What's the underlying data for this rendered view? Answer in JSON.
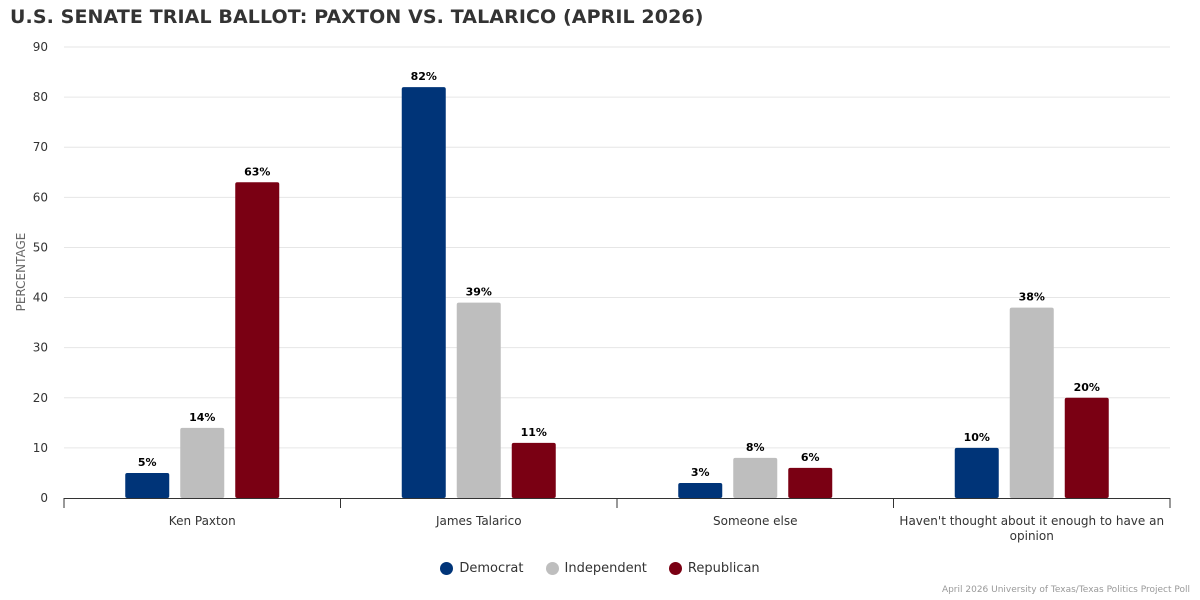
{
  "chart_data": {
    "type": "bar",
    "title": "U.S. SENATE TRIAL BALLOT: PAXTON VS. TALARICO (APRIL 2026)",
    "xlabel": "",
    "ylabel": "PERCENTAGE",
    "ylim": [
      0,
      90
    ],
    "yticks": [
      "0",
      "10",
      "20",
      "30",
      "40",
      "50",
      "60",
      "70",
      "80",
      "90"
    ],
    "grid": true,
    "legend_position": "bottom",
    "categories": [
      "Ken Paxton",
      "James Talarico",
      "Someone else",
      "Haven't thought about it enough to have an opinion"
    ],
    "series": [
      {
        "name": "Democrat",
        "color": "#003478",
        "values": [
          5,
          82,
          3,
          10
        ],
        "labels": [
          "5%",
          "82%",
          "3%",
          "10%"
        ]
      },
      {
        "name": "Independent",
        "color": "#bebebe",
        "values": [
          14,
          39,
          8,
          38
        ],
        "labels": [
          "14%",
          "39%",
          "8%",
          "38%"
        ]
      },
      {
        "name": "Republican",
        "color": "#7a0013",
        "values": [
          63,
          11,
          6,
          20
        ],
        "labels": [
          "63%",
          "11%",
          "6%",
          "20%"
        ]
      }
    ],
    "credit": "April 2026 University of Texas/Texas Politics Project Poll"
  }
}
